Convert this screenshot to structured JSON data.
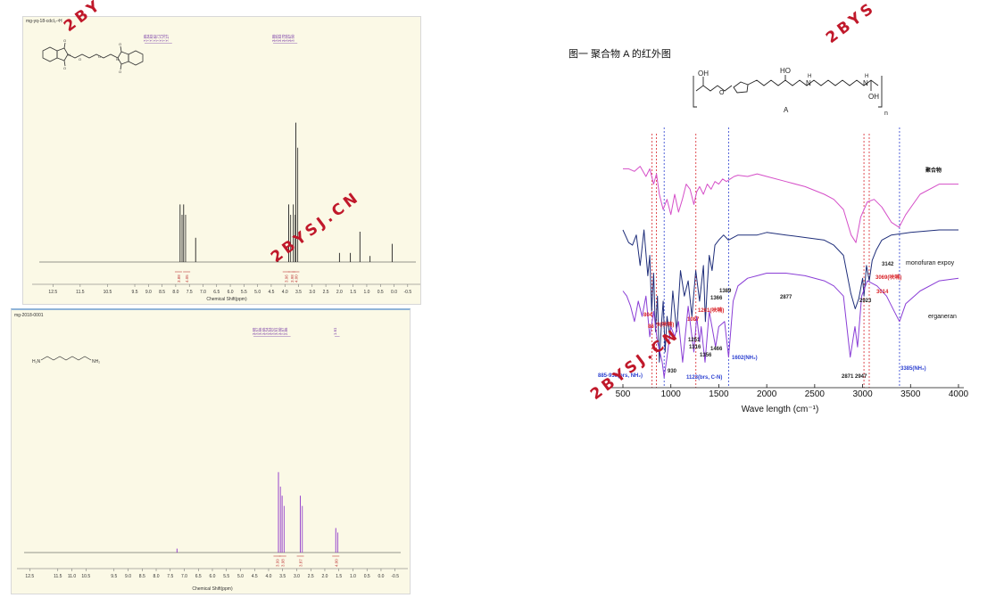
{
  "watermark": {
    "text": "2BYSJ.CN",
    "partial1": "2BY",
    "partial2": "2BYS"
  },
  "nmr_top": {
    "sample_label": "mg-yq-18-cdcl₃-¹H",
    "xaxis_title": "Chemical Shift(ppm)",
    "peak_list_left": [
      "7.85",
      "7.84",
      "7.83",
      "7.82",
      "7.71",
      "7.71",
      "7.70",
      "7.27"
    ],
    "peak_list_right": [
      "3.86",
      "3.85",
      "3.83",
      "3.70",
      "3.68",
      "3.67",
      "3.60"
    ],
    "integrals": [
      "3.88",
      "4.05",
      "3.96",
      "3.98",
      "4.00"
    ]
  },
  "nmr_bottom": {
    "sample_label": "mg-2018-0001",
    "xaxis_title": "Chemical Shift(ppm)",
    "peak_list_main": [
      "3.69",
      "3.67",
      "3.66",
      "3.65",
      "3.54",
      "3.53",
      "3.52",
      "3.51",
      "3.50",
      "2.87",
      "2.86"
    ],
    "peak_list_far": [
      "1.61"
    ],
    "integrals": [
      "3.99",
      "3.98",
      "3.87",
      "4.00"
    ],
    "molecule": {
      "left": "H₂N",
      "right": "NH₂"
    }
  },
  "ir": {
    "title": "图一 聚合物 A 的红外图",
    "polymer_label": "A",
    "repeat_n": "n",
    "atom_labels": {
      "oh1": "OH",
      "ho": "HO",
      "oh2": "OH",
      "h1": "H",
      "n1": "N",
      "h2": "H",
      "n2": "N"
    },
    "series_labels": [
      "聚合物",
      "monofuran expoy",
      "erganeran"
    ],
    "annotations": {
      "a3142": "3142",
      "a3069": "3069(呋喃)",
      "a3014": "3014",
      "a2877": "2877",
      "a2923": "2923",
      "a1389": "1389",
      "a1366": "1366",
      "a1261": "1261(呋喃)",
      "a1087": "1087",
      "a804": "804",
      "a86": "86",
      "a9": "9(呋喃)",
      "a1251": "1251",
      "a1316": "1316",
      "a1466": "1466",
      "a1356": "1356",
      "a1602": "1602(NH₂)",
      "a930": "930",
      "a885": "885-930(brs, NH₂)",
      "a1123": "1123(brs, C-N)",
      "a2871": "2871",
      "a2947": "2947",
      "a3385": "3385(NH₂)"
    }
  },
  "chart_data": [
    {
      "type": "line",
      "name": "nmr-top",
      "xlabel": "Chemical Shift(ppm)",
      "xlim": [
        13.0,
        -0.8
      ],
      "xticks": [
        12.5,
        11.5,
        10.5,
        9.5,
        9.0,
        8.5,
        8.0,
        7.5,
        7.0,
        6.5,
        6.0,
        5.5,
        5.0,
        4.5,
        4.0,
        3.5,
        3.0,
        2.5,
        2.0,
        1.5,
        1.0,
        0.5,
        0.0,
        -0.5
      ],
      "xtick_labels": [
        "12.5",
        "11.5",
        "10.5",
        "9.5",
        "9.0",
        "8.5",
        "8.0",
        "7.5",
        "7.0",
        "6.5",
        "6.0",
        "5.5",
        "5.0",
        "4.5",
        "4.0",
        "3.5",
        "3.0",
        "2.5",
        "2.0",
        "1.5",
        "1.0",
        "0.5",
        "0.0",
        "-0.5"
      ],
      "peaks": [
        [
          7.84,
          0.38
        ],
        [
          7.71,
          0.38
        ],
        [
          7.27,
          0.16
        ],
        [
          4.25,
          0.03
        ],
        [
          3.86,
          0.38
        ],
        [
          3.69,
          0.38
        ],
        [
          3.6,
          0.92
        ],
        [
          2.0,
          0.06
        ],
        [
          1.6,
          0.06
        ],
        [
          1.25,
          0.2
        ],
        [
          0.88,
          0.04
        ],
        [
          0.07,
          0.12
        ]
      ]
    },
    {
      "type": "line",
      "name": "nmr-bottom",
      "xlabel": "Chemical Shift(ppm)",
      "xlim": [
        12.7,
        -0.7
      ],
      "xticks": [
        12.5,
        11.5,
        11.0,
        10.5,
        9.5,
        9.0,
        8.5,
        8.0,
        7.5,
        7.0,
        6.5,
        6.0,
        5.5,
        5.0,
        4.5,
        4.0,
        3.5,
        3.0,
        2.5,
        2.0,
        1.5,
        1.0,
        0.5,
        0.0,
        -0.5
      ],
      "xtick_labels": [
        "12.5",
        "11.5",
        "11.0",
        "10.5",
        "9.5",
        "9.0",
        "8.5",
        "8.0",
        "7.5",
        "7.0",
        "6.5",
        "6.0",
        "5.5",
        "5.0",
        "4.5",
        "4.0",
        "3.5",
        "3.0",
        "2.5",
        "2.0",
        "1.5",
        "1.0",
        "0.5",
        "0.0",
        "-0.5"
      ],
      "peaks": [
        [
          7.26,
          0.04
        ],
        [
          3.65,
          0.82
        ],
        [
          3.52,
          0.58
        ],
        [
          2.87,
          0.58
        ],
        [
          1.61,
          0.25
        ]
      ]
    },
    {
      "type": "line",
      "name": "ir-spectrum",
      "xlabel": "Wave length (cm⁻¹)",
      "xlim": [
        400,
        4000
      ],
      "xticks": [
        500,
        1000,
        1500,
        2000,
        2500,
        3000,
        3500,
        4000
      ],
      "xtick_labels": [
        "500",
        "1000",
        "1500",
        "2000",
        "2500",
        "3000",
        "3500",
        "4000"
      ],
      "blue_guides": [
        930,
        1602,
        3385
      ],
      "red_guides": [
        804,
        850,
        1261,
        3014,
        3069
      ],
      "series": [
        {
          "name": "聚合物",
          "color": "#d54fc8",
          "x": [
            500,
            560,
            620,
            680,
            740,
            780,
            820,
            850,
            880,
            920,
            960,
            1000,
            1040,
            1080,
            1120,
            1160,
            1200,
            1240,
            1270,
            1300,
            1340,
            1380,
            1420,
            1460,
            1500,
            1540,
            1580,
            1620,
            1660,
            1700,
            1800,
            1900,
            2000,
            2200,
            2400,
            2600,
            2700,
            2800,
            2880,
            2930,
            2980,
            3050,
            3120,
            3200,
            3300,
            3380,
            3450,
            3600,
            3800,
            4000
          ],
          "y": [
            96,
            96,
            95,
            97,
            93,
            96,
            90,
            94,
            86,
            80,
            84,
            78,
            86,
            79,
            84,
            90,
            88,
            82,
            87,
            89,
            86,
            90,
            88,
            91,
            90,
            92,
            91,
            92,
            93,
            93.5,
            93,
            94,
            93,
            91,
            89,
            86,
            84,
            80,
            70,
            67,
            77,
            83,
            84,
            81,
            75,
            73,
            78,
            86,
            90,
            90
          ]
        },
        {
          "name": "monofuran expoy",
          "color": "#1f2e7a",
          "x": [
            500,
            560,
            600,
            640,
            680,
            720,
            760,
            780,
            800,
            820,
            840,
            860,
            880,
            900,
            920,
            940,
            960,
            990,
            1020,
            1060,
            1100,
            1140,
            1180,
            1220,
            1260,
            1300,
            1340,
            1360,
            1380,
            1400,
            1430,
            1460,
            1500,
            1550,
            1600,
            1700,
            1800,
            1900,
            2000,
            2200,
            2400,
            2600,
            2700,
            2800,
            2877,
            2923,
            2960,
            3000,
            3014,
            3040,
            3069,
            3100,
            3142,
            3200,
            3300,
            3500,
            3800,
            4000
          ],
          "y": [
            72,
            67,
            66,
            70,
            58,
            72,
            54,
            62,
            40,
            55,
            32,
            46,
            20,
            34,
            44,
            24,
            38,
            30,
            48,
            32,
            56,
            46,
            52,
            38,
            56,
            44,
            58,
            36,
            50,
            62,
            56,
            66,
            68,
            70,
            68,
            70,
            70,
            70,
            71,
            70,
            69,
            68,
            66,
            62,
            47,
            41,
            45,
            53,
            46,
            58,
            52,
            60,
            64,
            68,
            70,
            71,
            72,
            72
          ]
        },
        {
          "name": "erganeran",
          "color": "#8a3ed6",
          "x": [
            500,
            540,
            580,
            620,
            660,
            700,
            740,
            780,
            820,
            860,
            885,
            910,
            930,
            960,
            1000,
            1040,
            1080,
            1123,
            1180,
            1240,
            1270,
            1300,
            1316,
            1356,
            1400,
            1466,
            1500,
            1560,
            1602,
            1650,
            1700,
            1800,
            1900,
            2000,
            2200,
            2400,
            2600,
            2700,
            2800,
            2871,
            2920,
            2947,
            2990,
            3050,
            3150,
            3250,
            3330,
            3385,
            3450,
            3600,
            3800,
            4000
          ],
          "y": [
            48,
            46,
            42,
            36,
            44,
            38,
            46,
            30,
            40,
            28,
            24,
            20,
            14,
            22,
            34,
            30,
            36,
            20,
            42,
            24,
            38,
            28,
            34,
            20,
            40,
            26,
            34,
            36,
            22,
            44,
            50,
            53,
            54,
            55,
            55,
            54,
            52,
            50,
            46,
            22,
            34,
            26,
            46,
            52,
            50,
            46,
            40,
            36,
            43,
            48,
            52,
            53
          ]
        }
      ]
    }
  ]
}
